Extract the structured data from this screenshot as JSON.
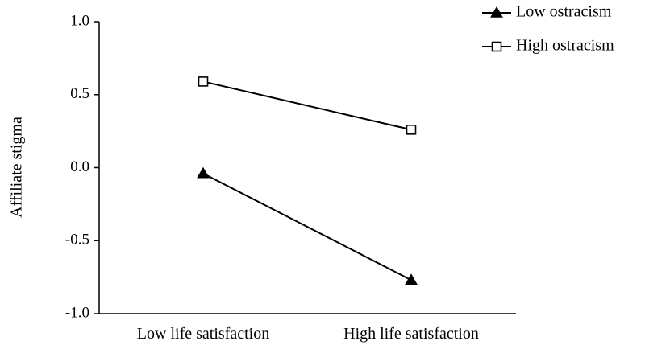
{
  "chart_data": {
    "type": "line",
    "categories": [
      "Low life satisfaction",
      "High life satisfaction"
    ],
    "ylabel": "Affiliate stigma",
    "xlabel": "",
    "ylim": [
      -1.0,
      1.0
    ],
    "yticks": [
      1.0,
      0.5,
      0.0,
      -0.5,
      -1.0
    ],
    "ytick_labels": [
      "1.0",
      "0.5",
      "0.0",
      "-0.5",
      "-1.0"
    ],
    "grid": false,
    "legend_position": "top-right",
    "series": [
      {
        "name": "Low ostracism",
        "values": [
          -0.04,
          -0.77
        ],
        "marker": "filled-triangle",
        "color": "#000000"
      },
      {
        "name": "High ostracism",
        "values": [
          0.59,
          0.26
        ],
        "marker": "open-square",
        "color": "#000000"
      }
    ]
  }
}
